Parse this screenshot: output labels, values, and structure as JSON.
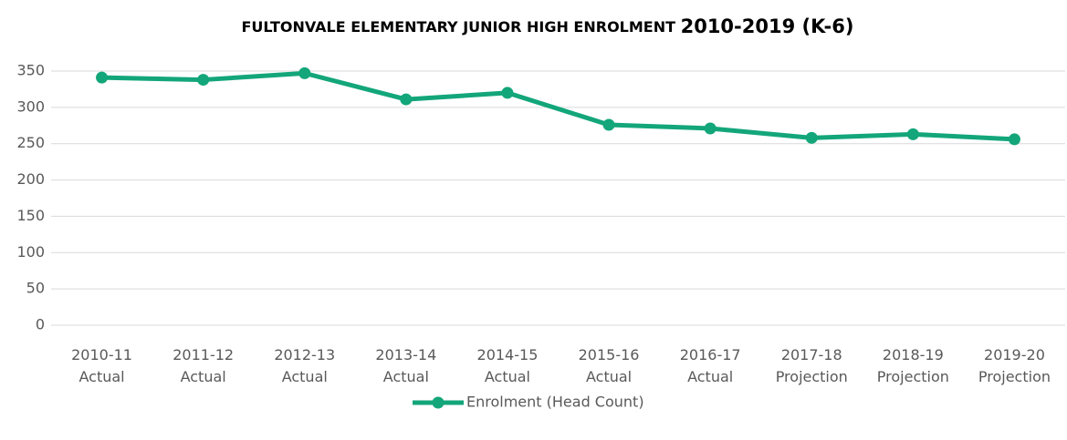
{
  "chart_data": {
    "type": "line",
    "title": [
      "FULTONVALE ELEMENTARY JUNIOR HIGH ENROLMENT",
      "2010-2019 (K-6)"
    ],
    "categories": [
      [
        "2010-11",
        "Actual"
      ],
      [
        "2011-12",
        "Actual"
      ],
      [
        "2012-13",
        "Actual"
      ],
      [
        "2013-14",
        "Actual"
      ],
      [
        "2014-15",
        "Actual"
      ],
      [
        "2015-16",
        "Actual"
      ],
      [
        "2016-17",
        "Actual"
      ],
      [
        "2017-18",
        "Projection"
      ],
      [
        "2018-19",
        "Projection"
      ],
      [
        "2019-20",
        "Projection"
      ]
    ],
    "series": [
      {
        "name": "Enrolment (Head Count)",
        "color": "#13a67a",
        "values": [
          341,
          338,
          347,
          311,
          320,
          276,
          271,
          258,
          263,
          256
        ]
      }
    ],
    "ylim": [
      0,
      350
    ],
    "yticks": [
      0,
      50,
      100,
      150,
      200,
      250,
      300,
      350
    ],
    "grid": true,
    "legend": "bottom"
  }
}
